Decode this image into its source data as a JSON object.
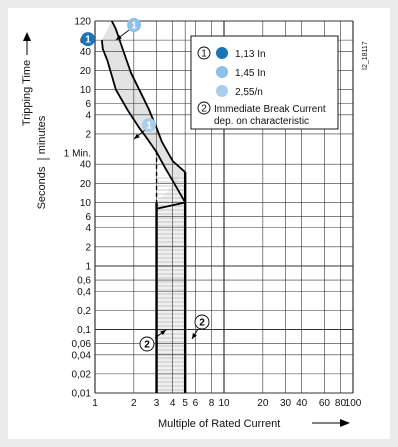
{
  "chart_data": {
    "type": "line",
    "image_id": "I2_18117",
    "y_axis": {
      "label": "Tripping Time",
      "sub_labels": [
        "Seconds",
        "minutes"
      ],
      "scale": "log",
      "ticks_minutes": [
        "120",
        "60",
        "40",
        "20",
        "10",
        "6",
        "4",
        "2"
      ],
      "one_minute_label": "1 Min.",
      "ticks_seconds": [
        "40",
        "20",
        "10",
        "6",
        "4",
        "2",
        "1",
        "0,6",
        "0,4",
        "0,2",
        "0,1",
        "0,06",
        "0,04",
        "0,02",
        "0,01"
      ]
    },
    "x_axis": {
      "label": "Multiple of Rated Current",
      "scale": "log",
      "ticks": [
        "1",
        "2",
        "3",
        "4",
        "5",
        "6",
        "8",
        "10",
        "20",
        "30",
        "40",
        "60",
        "80",
        "100"
      ],
      "range": [
        1,
        100
      ]
    },
    "legend": [
      {
        "marker": "1",
        "color": "#1a74b8",
        "text": "1,13 In"
      },
      {
        "marker": "",
        "color": "#8fbfe6",
        "text": "1,45 In"
      },
      {
        "marker": "",
        "color": "#a9cdea",
        "text": "2,55/n"
      },
      {
        "marker": "2",
        "color": "",
        "text": "Immediate Break Current dep. on characteristic"
      }
    ],
    "series": [
      {
        "x": [
          1.13,
          1.15,
          1.25,
          1.45,
          1.8,
          2.2,
          2.55,
          3,
          3.5,
          4,
          5
        ],
        "y_seconds": [
          3600,
          2600,
          1700,
          600,
          280,
          150,
          100,
          62,
          35,
          22,
          10
        ]
      },
      {
        "x": [
          1.35,
          1.45,
          1.6,
          1.9,
          2.3,
          2.6,
          3,
          3.3,
          4,
          5
        ],
        "y_seconds": [
          7200,
          5400,
          3000,
          1100,
          500,
          300,
          150,
          90,
          45,
          30
        ]
      }
    ],
    "instantaneous_band": {
      "x_min": 3,
      "x_max": 5
    },
    "annotations": [
      {
        "marker": "1",
        "x": 1.13,
        "y_seconds": 3600
      },
      {
        "marker": "1",
        "x": 1.45,
        "y_seconds": 3600
      },
      {
        "marker": "1",
        "x": 2.55,
        "y_seconds": 240
      },
      {
        "marker": "2",
        "x": 3,
        "y_seconds": 0.1
      },
      {
        "marker": "2",
        "x": 5,
        "y_seconds": 0.1
      }
    ]
  }
}
